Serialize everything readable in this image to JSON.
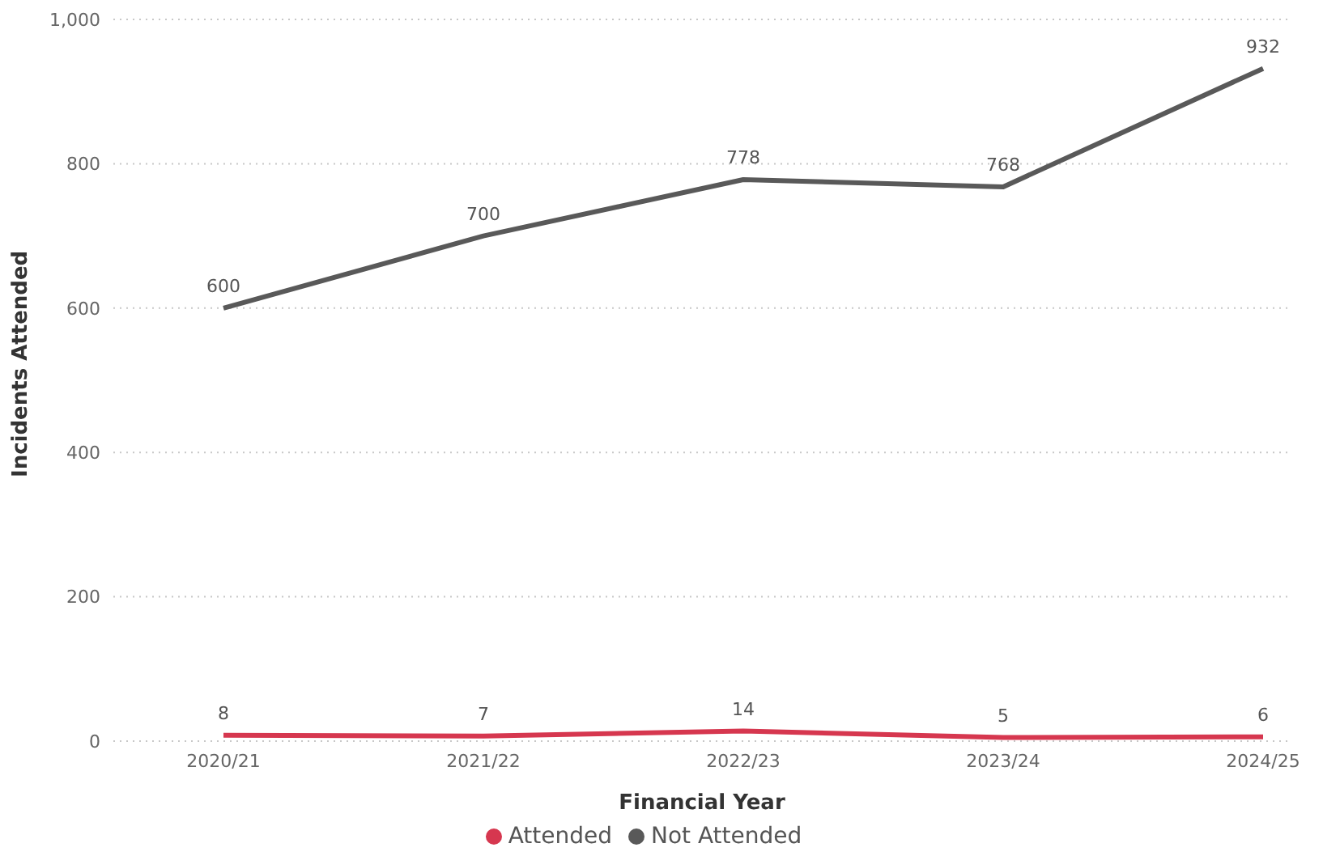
{
  "chart_data": {
    "type": "line",
    "xlabel": "Financial Year",
    "ylabel": "Incidents Attended",
    "categories": [
      "2020/21",
      "2021/22",
      "2022/23",
      "2023/24",
      "2024/25"
    ],
    "series": [
      {
        "name": "Attended",
        "color": "#d6374f",
        "values": [
          8,
          7,
          14,
          5,
          6
        ]
      },
      {
        "name": "Not Attended",
        "color": "#595959",
        "values": [
          600,
          700,
          778,
          768,
          932
        ]
      }
    ],
    "ylim": [
      0,
      1000
    ],
    "yticks": [
      0,
      200,
      400,
      600,
      800,
      {
        "value": 1000,
        "label": "1,000"
      }
    ],
    "grid": "y",
    "legend": "bottom",
    "data_labels": true,
    "marker": "none",
    "line_style": "solid"
  }
}
